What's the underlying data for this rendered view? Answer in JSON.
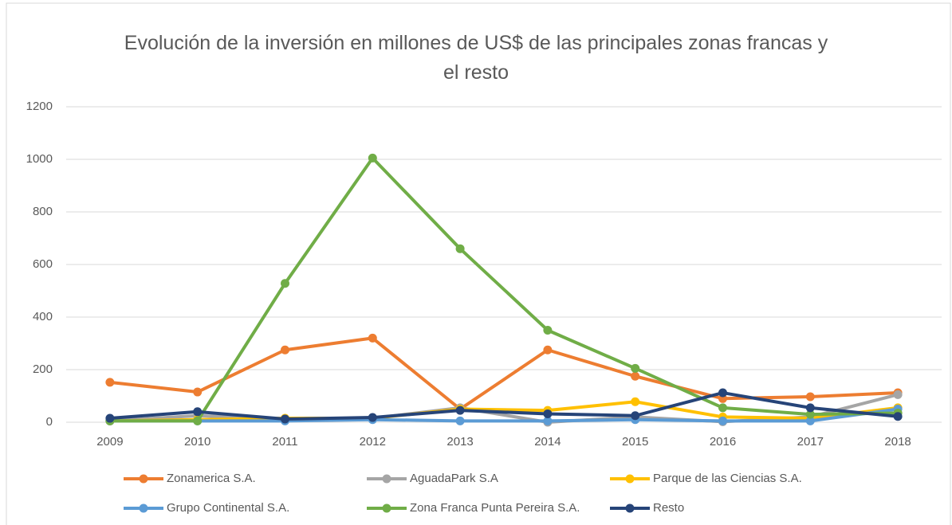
{
  "chart_data": {
    "type": "line",
    "title": "Evolución de la inversión en millones de US$ de las principales zonas francas y el resto",
    "categories": [
      "2009",
      "2010",
      "2011",
      "2012",
      "2013",
      "2014",
      "2015",
      "2016",
      "2017",
      "2018"
    ],
    "series": [
      {
        "name": "Zonamerica S.A.",
        "color": "#ed7d31",
        "values": [
          152,
          115,
          275,
          320,
          50,
          275,
          175,
          90,
          97,
          112
        ]
      },
      {
        "name": "AguadaPark S.A",
        "color": "#a5a5a5",
        "values": [
          5,
          25,
          10,
          15,
          55,
          0,
          20,
          2,
          20,
          105
        ]
      },
      {
        "name": "Parque de las Ciencias S.A.",
        "color": "#ffc000",
        "values": [
          5,
          10,
          15,
          15,
          50,
          45,
          78,
          20,
          15,
          55
        ]
      },
      {
        "name": "Grupo Continental S.A.",
        "color": "#5b9bd5",
        "values": [
          5,
          5,
          5,
          10,
          5,
          5,
          10,
          5,
          5,
          50
        ]
      },
      {
        "name": "Zona Franca Punta Pereira S.A.",
        "color": "#70ad47",
        "values": [
          5,
          5,
          528,
          1005,
          660,
          350,
          205,
          55,
          30,
          35
        ]
      },
      {
        "name": "Resto",
        "color": "#264478",
        "values": [
          15,
          40,
          12,
          18,
          45,
          32,
          25,
          112,
          55,
          22
        ]
      }
    ],
    "ylim": [
      0,
      1200
    ],
    "yticks": [
      0,
      200,
      400,
      600,
      800,
      1000,
      1200
    ],
    "grid": true,
    "legend": "bottom"
  }
}
